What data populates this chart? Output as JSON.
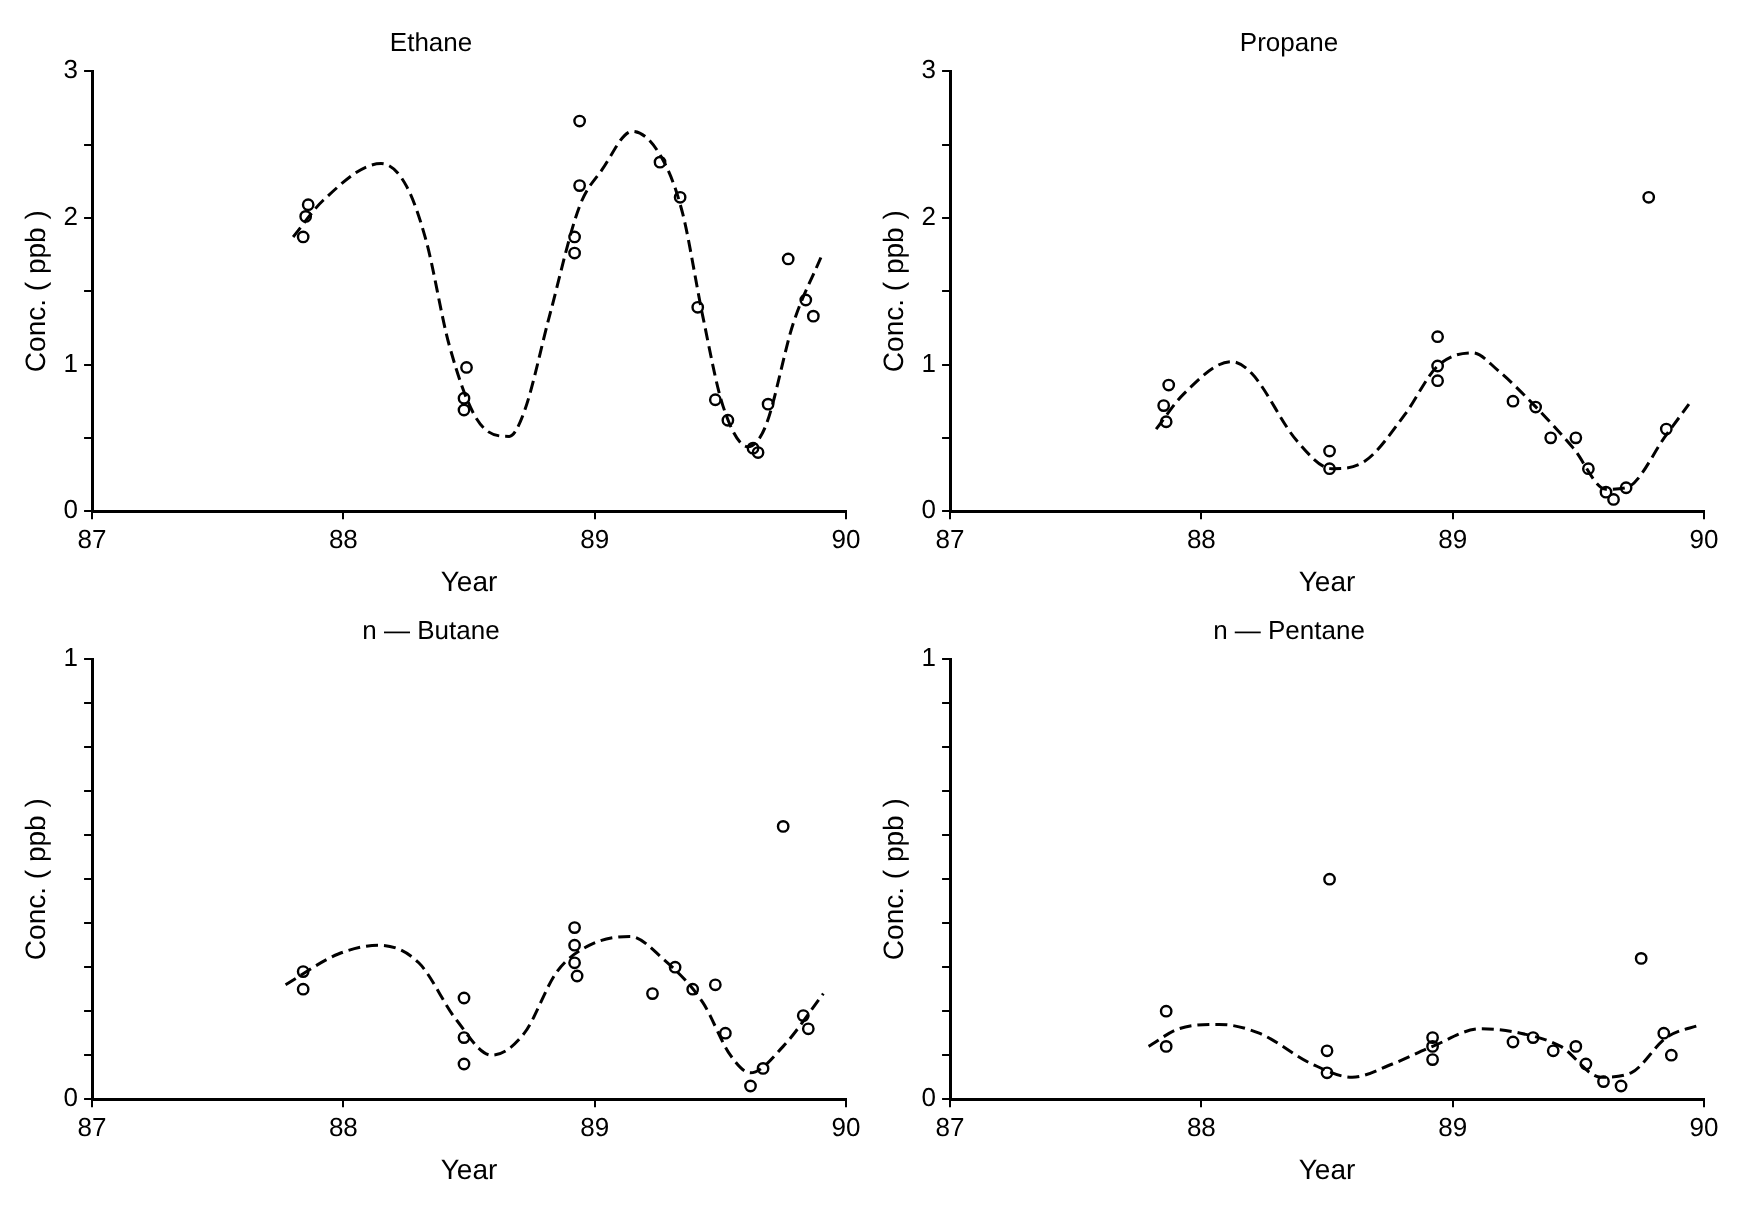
{
  "chart_data": [
    {
      "type": "scatter",
      "title": "Ethane",
      "xlabel": "Year",
      "ylabel": "Conc. ( ppb )",
      "xlim": [
        87,
        90
      ],
      "xticks": [
        87,
        88,
        89,
        90
      ],
      "ylim": [
        0,
        3
      ],
      "yticks": [
        0,
        {
          "value": 0.5,
          "label": null
        },
        1,
        {
          "value": 1.5,
          "label": null
        },
        2,
        {
          "value": 2.5,
          "label": null
        },
        3
      ],
      "grid": false,
      "legend": false,
      "series": [
        {
          "color": "#000000",
          "marker": "circle",
          "x": [
            87.84,
            87.85,
            87.86,
            88.49,
            88.48,
            88.48,
            88.94,
            88.94,
            88.92,
            88.92,
            89.26,
            89.34,
            89.41,
            89.48,
            89.53,
            89.63,
            89.65,
            89.69,
            89.77,
            89.84,
            89.87
          ],
          "values": [
            1.87,
            2.01,
            2.09,
            0.98,
            0.77,
            0.69,
            2.66,
            2.22,
            1.87,
            1.76,
            2.38,
            2.14,
            1.39,
            0.76,
            0.62,
            0.43,
            0.4,
            0.73,
            1.72,
            1.44,
            1.33
          ]
        },
        {
          "type": "line",
          "color": "#000000",
          "marker": "none",
          "line_style": "dashed",
          "x": [
            87.8,
            87.92,
            88.15,
            88.25,
            88.33,
            88.42,
            88.53,
            88.66,
            88.72,
            88.82,
            88.94,
            89.03,
            89.15,
            89.27,
            89.35,
            89.43,
            89.51,
            89.61,
            89.68,
            89.79,
            89.9
          ],
          "values": [
            1.87,
            2.12,
            2.37,
            2.22,
            1.84,
            1.14,
            0.63,
            0.51,
            0.68,
            1.33,
            2.08,
            2.33,
            2.59,
            2.4,
            2.03,
            1.33,
            0.72,
            0.44,
            0.58,
            1.28,
            1.73
          ]
        }
      ]
    },
    {
      "type": "scatter",
      "title": "Propane",
      "xlabel": "Year",
      "ylabel": "Conc. ( ppb )",
      "xlim": [
        87,
        90
      ],
      "xticks": [
        87,
        88,
        89,
        90
      ],
      "ylim": [
        0,
        3
      ],
      "yticks": [
        0,
        {
          "value": 0.5,
          "label": null
        },
        1,
        {
          "value": 1.5,
          "label": null
        },
        2,
        {
          "value": 2.5,
          "label": null
        },
        3
      ],
      "grid": false,
      "legend": false,
      "series": [
        {
          "color": "#000000",
          "marker": "circle",
          "x": [
            87.87,
            87.85,
            87.86,
            88.51,
            88.51,
            88.94,
            88.94,
            88.94,
            89.24,
            89.33,
            89.39,
            89.49,
            89.54,
            89.61,
            89.64,
            89.69,
            89.78,
            89.85
          ],
          "values": [
            0.86,
            0.72,
            0.61,
            0.41,
            0.29,
            1.19,
            0.99,
            0.89,
            0.75,
            0.71,
            0.5,
            0.5,
            0.29,
            0.13,
            0.08,
            0.16,
            2.14,
            0.56
          ]
        },
        {
          "type": "line",
          "color": "#000000",
          "marker": "none",
          "line_style": "dashed",
          "x": [
            87.82,
            87.93,
            88.12,
            88.2,
            88.38,
            88.52,
            88.65,
            88.81,
            88.94,
            89.08,
            89.18,
            89.32,
            89.48,
            89.61,
            89.69,
            89.85,
            89.94
          ],
          "values": [
            0.56,
            0.8,
            1.02,
            0.94,
            0.48,
            0.29,
            0.34,
            0.66,
            0.99,
            1.08,
            0.96,
            0.73,
            0.43,
            0.15,
            0.16,
            0.52,
            0.73
          ]
        }
      ]
    },
    {
      "type": "scatter",
      "title": "n — Butane",
      "xlabel": "Year",
      "ylabel": "Conc. ( ppb )",
      "xlim": [
        87,
        90
      ],
      "xticks": [
        87,
        88,
        89,
        90
      ],
      "ylim": [
        0,
        1
      ],
      "yticks": [
        0,
        {
          "value": 0.1,
          "label": null
        },
        {
          "value": 0.2,
          "label": null
        },
        {
          "value": 0.3,
          "label": null
        },
        {
          "value": 0.4,
          "label": null
        },
        {
          "value": 0.5,
          "label": null
        },
        {
          "value": 0.6,
          "label": null
        },
        {
          "value": 0.7,
          "label": null
        },
        {
          "value": 0.8,
          "label": null
        },
        {
          "value": 0.9,
          "label": null
        },
        1
      ],
      "grid": false,
      "legend": false,
      "series": [
        {
          "color": "#000000",
          "marker": "circle",
          "x": [
            87.84,
            87.84,
            88.48,
            88.48,
            88.48,
            88.92,
            88.92,
            88.92,
            88.93,
            89.23,
            89.32,
            89.39,
            89.48,
            89.52,
            89.62,
            89.67,
            89.75,
            89.83,
            89.85
          ],
          "values": [
            0.25,
            0.29,
            0.23,
            0.14,
            0.08,
            0.39,
            0.35,
            0.31,
            0.28,
            0.24,
            0.3,
            0.25,
            0.26,
            0.15,
            0.03,
            0.07,
            0.62,
            0.19,
            0.16
          ]
        },
        {
          "type": "line",
          "color": "#000000",
          "marker": "none",
          "line_style": "dashed",
          "x": [
            87.77,
            87.98,
            88.14,
            88.3,
            88.45,
            88.59,
            88.72,
            88.85,
            88.98,
            89.14,
            89.27,
            89.43,
            89.54,
            89.62,
            89.75,
            89.91
          ],
          "values": [
            0.26,
            0.33,
            0.35,
            0.31,
            0.18,
            0.1,
            0.15,
            0.29,
            0.35,
            0.37,
            0.32,
            0.22,
            0.1,
            0.06,
            0.12,
            0.24
          ]
        }
      ]
    },
    {
      "type": "scatter",
      "title": "n — Pentane",
      "xlabel": "Year",
      "ylabel": "Conc. ( ppb )",
      "xlim": [
        87,
        90
      ],
      "xticks": [
        87,
        88,
        89,
        90
      ],
      "ylim": [
        0,
        1
      ],
      "yticks": [
        0,
        {
          "value": 0.1,
          "label": null
        },
        {
          "value": 0.2,
          "label": null
        },
        {
          "value": 0.3,
          "label": null
        },
        {
          "value": 0.4,
          "label": null
        },
        {
          "value": 0.5,
          "label": null
        },
        {
          "value": 0.6,
          "label": null
        },
        {
          "value": 0.7,
          "label": null
        },
        {
          "value": 0.8,
          "label": null
        },
        {
          "value": 0.9,
          "label": null
        },
        1
      ],
      "grid": false,
      "legend": false,
      "series": [
        {
          "color": "#000000",
          "marker": "circle",
          "x": [
            87.86,
            87.86,
            88.51,
            88.5,
            88.5,
            88.92,
            88.92,
            88.92,
            89.24,
            89.32,
            89.4,
            89.49,
            89.53,
            89.6,
            89.67,
            89.75,
            89.84,
            89.87
          ],
          "values": [
            0.2,
            0.12,
            0.5,
            0.11,
            0.06,
            0.14,
            0.12,
            0.09,
            0.13,
            0.14,
            0.11,
            0.12,
            0.08,
            0.04,
            0.03,
            0.32,
            0.15,
            0.1
          ]
        },
        {
          "type": "line",
          "color": "#000000",
          "marker": "none",
          "line_style": "dashed",
          "x": [
            87.79,
            87.91,
            88.07,
            88.23,
            88.44,
            88.6,
            88.76,
            88.92,
            89.11,
            89.27,
            89.43,
            89.59,
            89.71,
            89.85,
            89.99
          ],
          "values": [
            0.12,
            0.16,
            0.17,
            0.15,
            0.08,
            0.05,
            0.08,
            0.12,
            0.16,
            0.15,
            0.12,
            0.05,
            0.06,
            0.14,
            0.17
          ]
        }
      ]
    }
  ]
}
